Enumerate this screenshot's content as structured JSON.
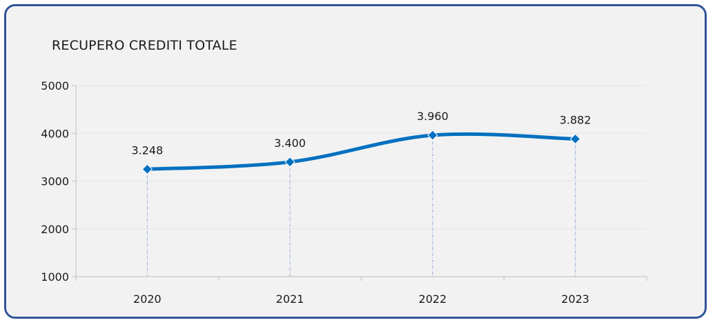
{
  "chart_data": {
    "type": "line",
    "title": "RECUPERO CREDITI TOTALE",
    "categories": [
      "2020",
      "2021",
      "2022",
      "2023"
    ],
    "series": [
      {
        "values": [
          3248,
          3400,
          3960,
          3882
        ],
        "labels": [
          "3.248",
          "3.400",
          "3.960",
          "3.882"
        ]
      }
    ],
    "ylim": [
      1000,
      5000
    ],
    "yticks": [
      "1000",
      "2000",
      "3000",
      "4000",
      "5000"
    ],
    "xlabel": "",
    "ylabel": "",
    "grid": true,
    "smooth": true,
    "drop_lines": true,
    "legend": "none",
    "line_color": "#0070c0",
    "marker": "diamond"
  }
}
